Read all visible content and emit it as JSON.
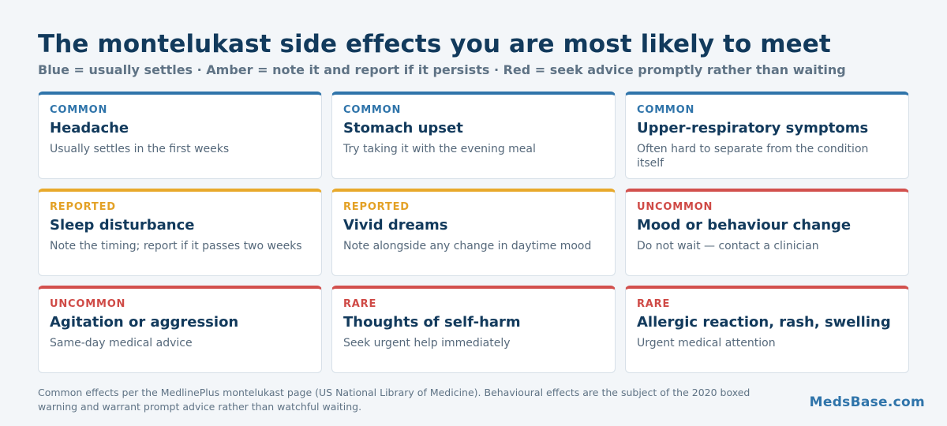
{
  "title": "The montelukast side effects you are most likely to meet",
  "subtitle": "Blue = usually settles · Amber = note it and report if it persists · Red = seek advice promptly rather than waiting",
  "colors": {
    "blue": "#2f74aa",
    "amber": "#e8a92b",
    "red": "#d2504d"
  },
  "cards": [
    {
      "level": "blue",
      "tag": "COMMON",
      "name": "Headache",
      "note": "Usually settles in the first weeks"
    },
    {
      "level": "blue",
      "tag": "COMMON",
      "name": "Stomach upset",
      "note": "Try taking it with the evening meal"
    },
    {
      "level": "blue",
      "tag": "COMMON",
      "name": "Upper-respiratory symptoms",
      "note": "Often hard to separate from the condition itself"
    },
    {
      "level": "amber",
      "tag": "REPORTED",
      "name": "Sleep disturbance",
      "note": "Note the timing; report if it passes two weeks"
    },
    {
      "level": "amber",
      "tag": "REPORTED",
      "name": "Vivid dreams",
      "note": "Note alongside any change in daytime mood"
    },
    {
      "level": "red",
      "tag": "UNCOMMON",
      "name": "Mood or behaviour change",
      "note": "Do not wait — contact a clinician"
    },
    {
      "level": "red",
      "tag": "UNCOMMON",
      "name": "Agitation or aggression",
      "note": "Same-day medical advice"
    },
    {
      "level": "red",
      "tag": "RARE",
      "name": "Thoughts of self-harm",
      "note": "Seek urgent help immediately"
    },
    {
      "level": "red",
      "tag": "RARE",
      "name": "Allergic reaction, rash, swelling",
      "note": "Urgent medical attention"
    }
  ],
  "footnote": "Common effects per the MedlinePlus montelukast page (US National Library of Medicine). Behavioural effects are the subject of the 2020 boxed warning and warrant prompt advice rather than watchful waiting.",
  "brand": "MedsBase.com"
}
